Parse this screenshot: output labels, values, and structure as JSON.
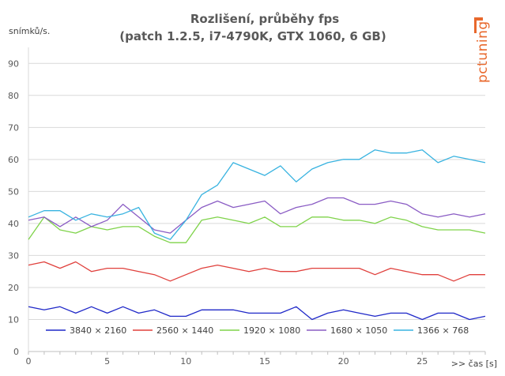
{
  "chart_data": {
    "type": "line",
    "title_line1": "Rozlišení, průběhy fps",
    "title_line2": "(patch 1.2.5, i7-4790K, GTX 1060, 6 GB)",
    "ylabel": "snímků/s.",
    "xlabel": ">> čas [s]",
    "ylim": [
      0,
      95
    ],
    "xlim": [
      0,
      29
    ],
    "yticks": [
      0,
      10,
      20,
      30,
      40,
      50,
      60,
      70,
      80,
      90
    ],
    "xticks": [
      0,
      5,
      10,
      15,
      20,
      25
    ],
    "grid": true,
    "legend_position": "bottom",
    "x": [
      0,
      1,
      2,
      3,
      4,
      5,
      6,
      7,
      8,
      9,
      10,
      11,
      12,
      13,
      14,
      15,
      16,
      17,
      18,
      19,
      20,
      21,
      22,
      23,
      24,
      25,
      26,
      27,
      28,
      29
    ],
    "series": [
      {
        "name": "3840 × 2160",
        "color": "#1f28c8",
        "values": [
          14,
          13,
          14,
          12,
          14,
          12,
          14,
          12,
          13,
          11,
          11,
          13,
          13,
          13,
          12,
          12,
          12,
          14,
          10,
          12,
          13,
          12,
          11,
          12,
          12,
          10,
          12,
          12,
          10,
          11
        ]
      },
      {
        "name": "2560 × 1440",
        "color": "#e0403c",
        "values": [
          27,
          28,
          26,
          28,
          25,
          26,
          26,
          25,
          24,
          22,
          24,
          26,
          27,
          26,
          25,
          26,
          25,
          25,
          26,
          26,
          26,
          26,
          24,
          26,
          25,
          24,
          24,
          22,
          24,
          24
        ]
      },
      {
        "name": "1920 × 1080",
        "color": "#7fd34a",
        "values": [
          35,
          42,
          38,
          37,
          39,
          38,
          39,
          39,
          36,
          34,
          34,
          41,
          42,
          41,
          40,
          42,
          39,
          39,
          42,
          42,
          41,
          41,
          40,
          42,
          41,
          39,
          38,
          38,
          38,
          37
        ]
      },
      {
        "name": "1680 × 1050",
        "color": "#8a5cc4",
        "values": [
          41,
          42,
          39,
          42,
          39,
          41,
          46,
          42,
          38,
          37,
          41,
          45,
          47,
          45,
          46,
          47,
          43,
          45,
          46,
          48,
          48,
          46,
          46,
          47,
          46,
          43,
          42,
          43,
          42,
          43
        ]
      },
      {
        "name": "1366 × 768",
        "color": "#38b3e0",
        "values": [
          42,
          44,
          44,
          41,
          43,
          42,
          43,
          45,
          37,
          35,
          41,
          49,
          52,
          59,
          57,
          55,
          58,
          53,
          57,
          59,
          60,
          60,
          63,
          62,
          62,
          63,
          59,
          61,
          60,
          59
        ]
      }
    ]
  },
  "logo": {
    "text": "pctuning",
    "color": "#e8682c"
  }
}
